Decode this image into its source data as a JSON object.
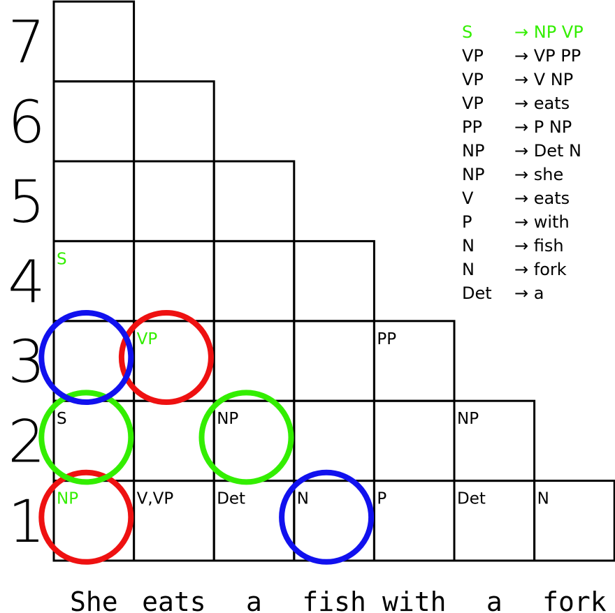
{
  "row_labels": [
    "1",
    "2",
    "3",
    "4",
    "5",
    "6",
    "7"
  ],
  "words": [
    "She",
    "eats",
    "a",
    "fish",
    "with",
    "a",
    "fork"
  ],
  "chart_cells": [
    {
      "row": 1,
      "col": 1,
      "label": "NP",
      "color": "#33ee00"
    },
    {
      "row": 1,
      "col": 2,
      "label": "V,VP",
      "color": "#000000"
    },
    {
      "row": 1,
      "col": 3,
      "label": "Det",
      "color": "#000000"
    },
    {
      "row": 1,
      "col": 4,
      "label": "N",
      "color": "#000000"
    },
    {
      "row": 1,
      "col": 5,
      "label": "P",
      "color": "#000000"
    },
    {
      "row": 1,
      "col": 6,
      "label": "Det",
      "color": "#000000"
    },
    {
      "row": 1,
      "col": 7,
      "label": "N",
      "color": "#000000"
    },
    {
      "row": 2,
      "col": 1,
      "label": "S",
      "color": "#000000"
    },
    {
      "row": 2,
      "col": 3,
      "label": "NP",
      "color": "#000000"
    },
    {
      "row": 2,
      "col": 6,
      "label": "NP",
      "color": "#000000"
    },
    {
      "row": 3,
      "col": 2,
      "label": "VP",
      "color": "#33ee00"
    },
    {
      "row": 3,
      "col": 5,
      "label": "PP",
      "color": "#000000"
    },
    {
      "row": 4,
      "col": 1,
      "label": "S",
      "color": "#33ee00"
    }
  ],
  "grammar": [
    {
      "lhs": "S",
      "rhs": "→ NP VP",
      "color": "#33ee00"
    },
    {
      "lhs": "VP",
      "rhs": "→ VP PP",
      "color": "#000000"
    },
    {
      "lhs": "VP",
      "rhs": "→ V NP",
      "color": "#000000"
    },
    {
      "lhs": "VP",
      "rhs": "→ eats",
      "color": "#000000"
    },
    {
      "lhs": "PP",
      "rhs": "→ P NP",
      "color": "#000000"
    },
    {
      "lhs": "NP",
      "rhs": "→ Det N",
      "color": "#000000"
    },
    {
      "lhs": "NP",
      "rhs": "→ she",
      "color": "#000000"
    },
    {
      "lhs": "V",
      "rhs": "→ eats",
      "color": "#000000"
    },
    {
      "lhs": "P",
      "rhs": "→ with",
      "color": "#000000"
    },
    {
      "lhs": "N",
      "rhs": "→ fish",
      "color": "#000000"
    },
    {
      "lhs": "N",
      "rhs": "→ fork",
      "color": "#000000"
    },
    {
      "lhs": "Det",
      "rhs": "→ a",
      "color": "#000000"
    }
  ],
  "highlight_circles": [
    {
      "row": 1,
      "col": 1,
      "color": "#ee1111"
    },
    {
      "row": 3,
      "col": 2,
      "color": "#ee1111"
    },
    {
      "row": 2,
      "col": 1,
      "color": "#33ee00"
    },
    {
      "row": 2,
      "col": 3,
      "color": "#33ee00"
    },
    {
      "row": 3,
      "col": 1,
      "color": "#1111ee"
    },
    {
      "row": 1,
      "col": 4,
      "color": "#1111ee"
    }
  ]
}
